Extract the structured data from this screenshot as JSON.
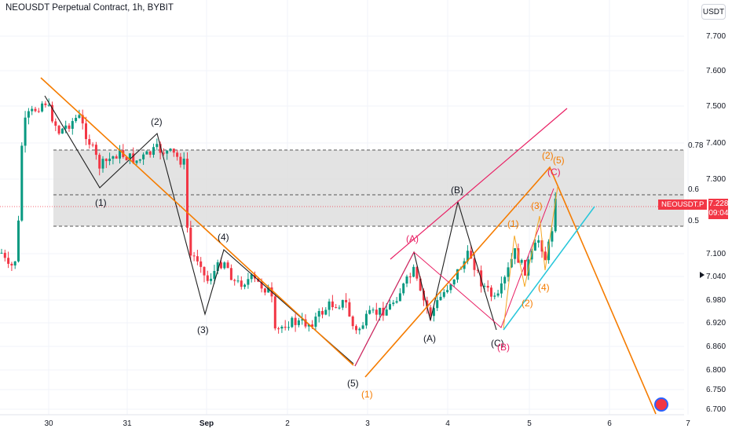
{
  "header": {
    "title": "NEOUSDT Perpetual Contract, 1h, BYBIT",
    "currency": "USDT"
  },
  "price_tag": {
    "symbol": "NEOUSDT.P",
    "price": "7.228",
    "countdown": "09:04",
    "color": "#f23645"
  },
  "chart_data": {
    "type": "candlestick",
    "xlabel": "",
    "ylabel": "",
    "ylim": [
      6.68,
      7.78
    ],
    "x_ticks": [
      "30",
      "31",
      "Sep",
      "2",
      "3",
      "4",
      "5",
      "6",
      "7"
    ],
    "y_ticks": [
      "7.700",
      "7.600",
      "7.500",
      "7.400",
      "7.300",
      "7.100",
      "7.040",
      "6.980",
      "6.920",
      "6.860",
      "6.800",
      "6.750",
      "6.700"
    ],
    "fib_levels": [
      {
        "label": "0.78",
        "price": 7.38
      },
      {
        "label": "0.6",
        "price": 7.26
      },
      {
        "label": "0.5",
        "price": 7.18
      }
    ],
    "current_price": 7.228,
    "wave_labels_black": [
      "(1)",
      "(2)",
      "(3)",
      "(4)",
      "(5)",
      "(A)",
      "(B)",
      "(C)"
    ],
    "wave_labels_orange": [
      "(1)",
      "(1)",
      "(2)",
      "(3)",
      "(4)",
      "(2)",
      "(5)"
    ],
    "wave_labels_red": [
      "(A)",
      "(C)",
      "(B)"
    ],
    "colors": {
      "up": "#089981",
      "down": "#f23645",
      "orange": "#f57c00",
      "red_channel": "#e91e63",
      "cyan": "#26c6da",
      "zone": "#d9d9d9"
    }
  }
}
